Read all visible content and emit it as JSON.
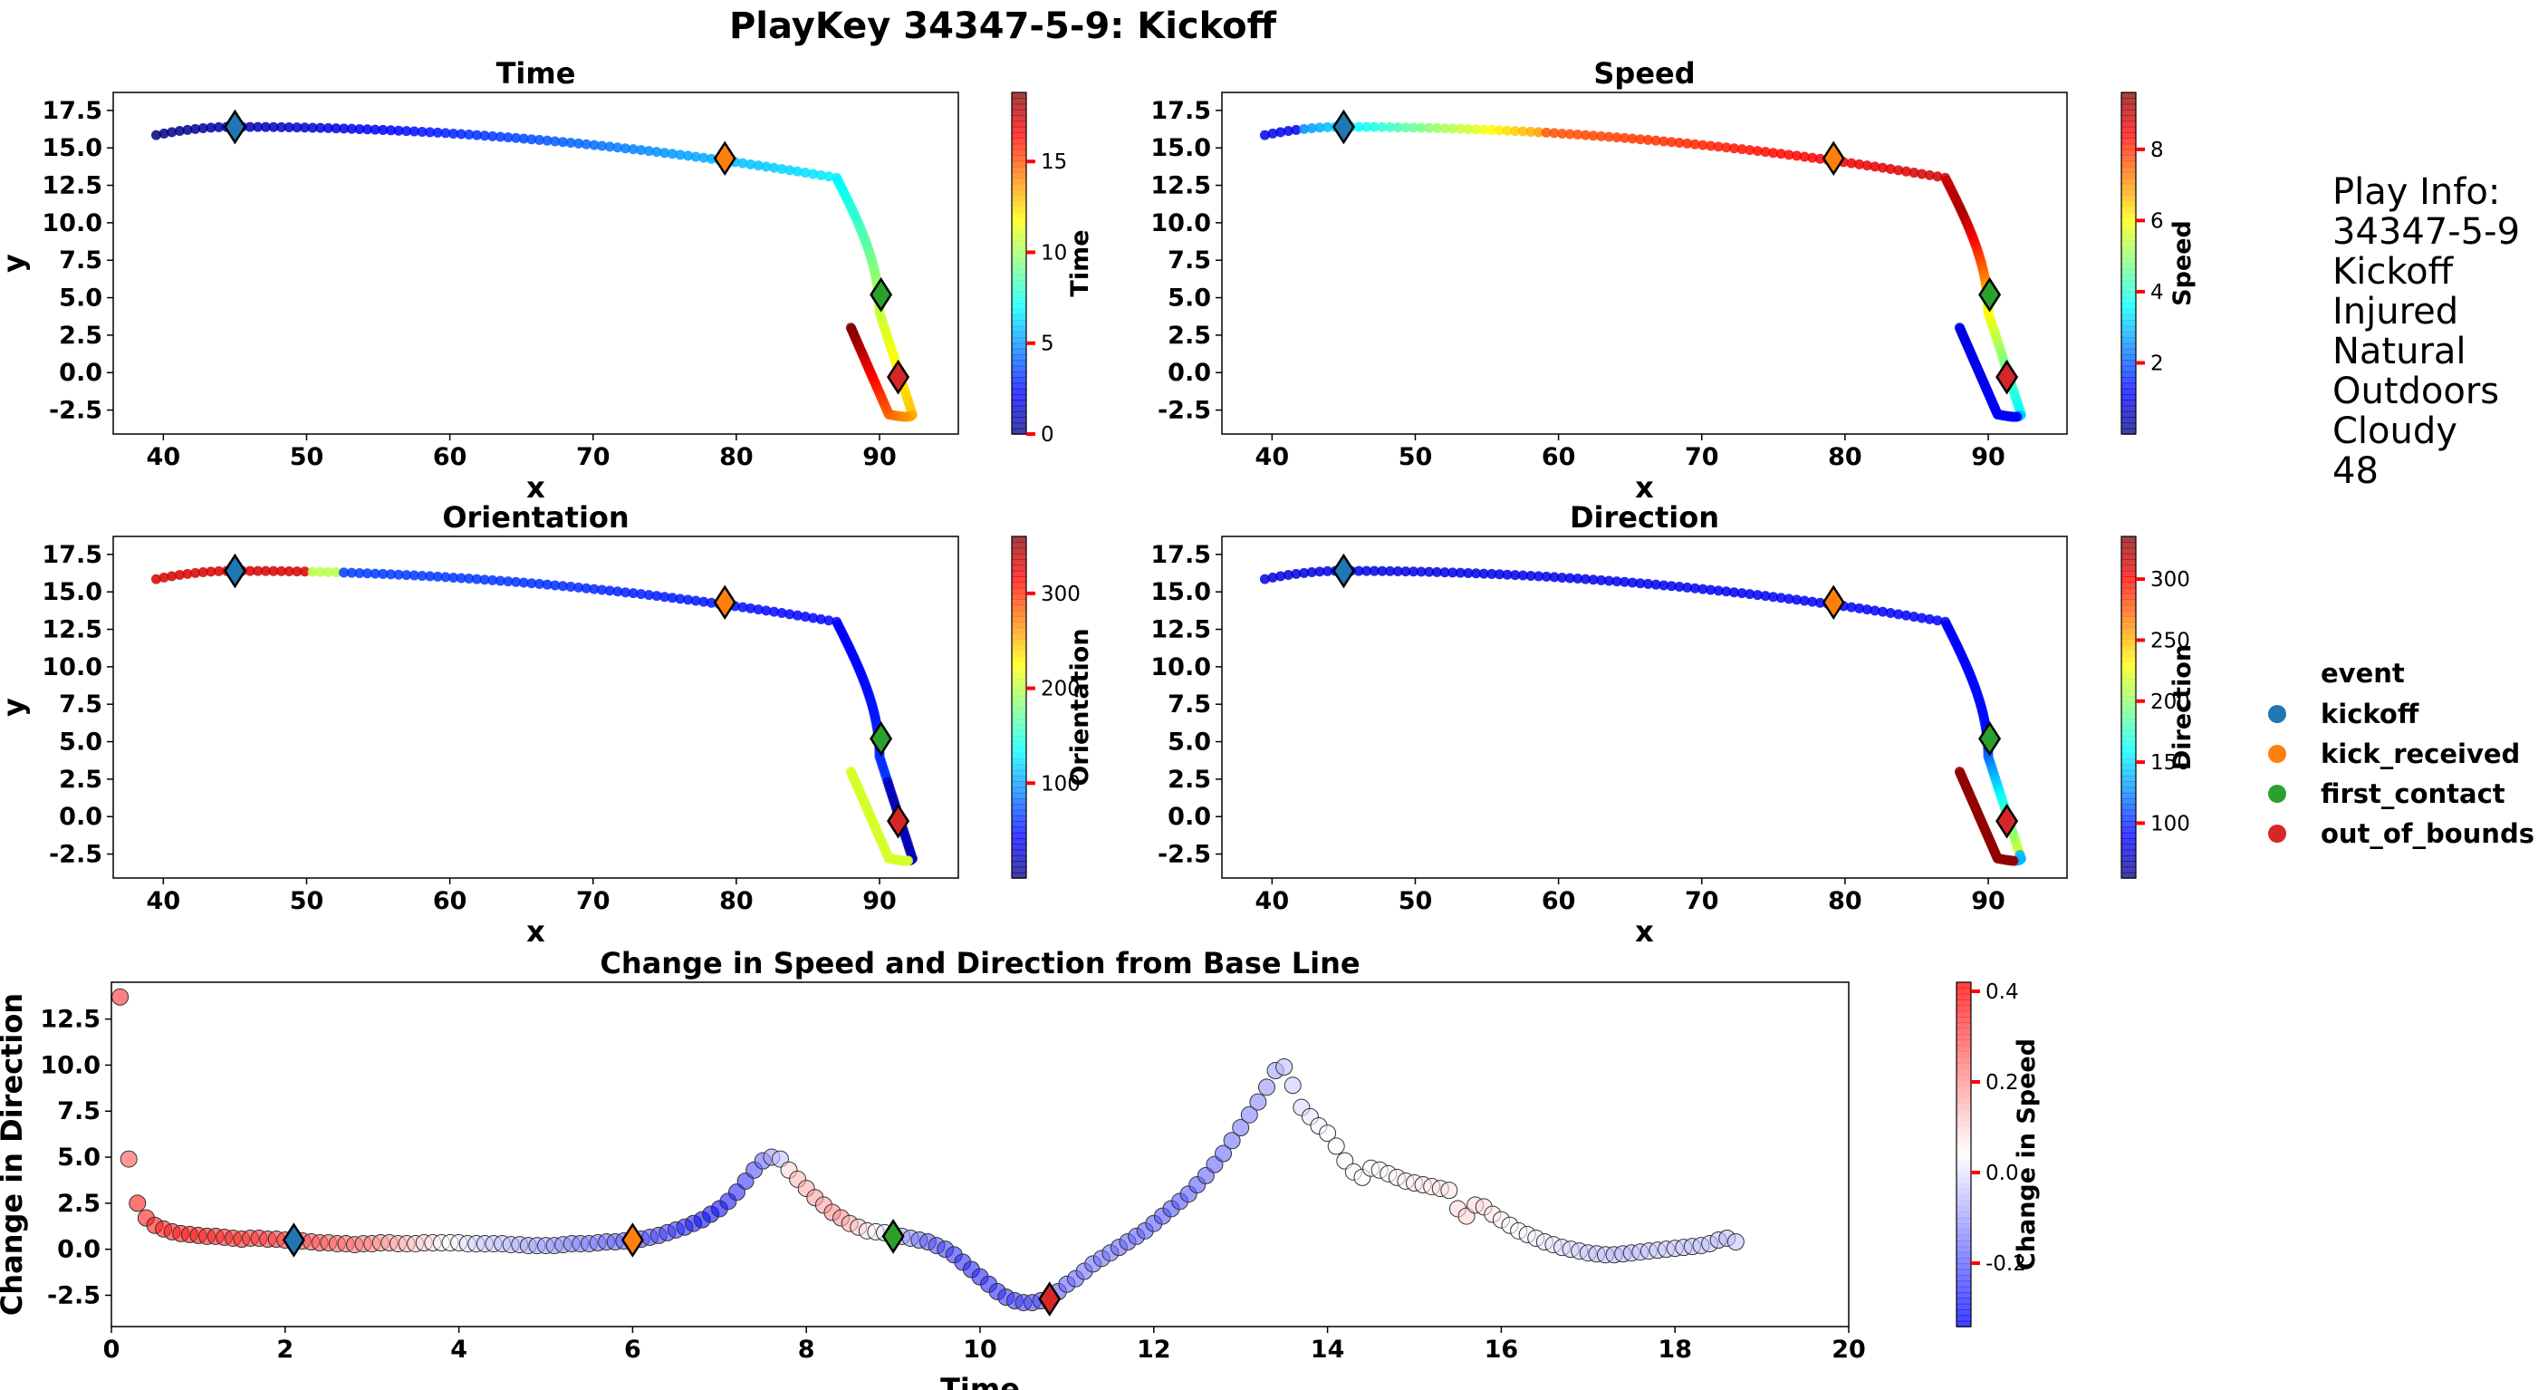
{
  "title": "PlayKey 34347-5-9: Kickoff",
  "info": {
    "heading": "Play Info:",
    "lines": [
      "34347-5-9",
      "Kickoff",
      "Injured",
      "Natural",
      "Outdoors",
      "Cloudy",
      "48"
    ]
  },
  "legend": {
    "title": "event",
    "items": [
      {
        "label": "kickoff",
        "color": "#1f77b4"
      },
      {
        "label": "kick_received",
        "color": "#ff7f0e"
      },
      {
        "label": "first_contact",
        "color": "#2ca02c"
      },
      {
        "label": "out_of_bounds",
        "color": "#d62728"
      }
    ]
  },
  "chart_data": [
    {
      "type": "scatter",
      "title": "Time",
      "xlabel": "x",
      "ylabel": "y",
      "colorbar_label": "Time",
      "colormap": "jet",
      "xlim": [
        36.5,
        95.5
      ],
      "ylim": [
        -4.1,
        18.7
      ],
      "xticks": [
        40,
        50,
        60,
        70,
        80,
        90
      ],
      "yticks": [
        -2.5,
        0.0,
        2.5,
        5.0,
        7.5,
        10.0,
        12.5,
        15.0,
        17.5
      ],
      "clim": [
        0,
        18.8
      ],
      "cticks": [
        0,
        5,
        10,
        15
      ],
      "series_note": "color = time (s), same path in all four panels",
      "markers": [
        {
          "event": "kickoff",
          "x": 45.0,
          "y": 16.4
        },
        {
          "event": "kick_received",
          "x": 79.2,
          "y": 14.3
        },
        {
          "event": "first_contact",
          "x": 90.1,
          "y": 5.2
        },
        {
          "event": "out_of_bounds",
          "x": 91.3,
          "y": -0.3
        }
      ]
    },
    {
      "type": "scatter",
      "title": "Speed",
      "xlabel": "x",
      "ylabel": "",
      "colorbar_label": "Speed",
      "colormap": "jet",
      "xlim": [
        36.5,
        95.5
      ],
      "ylim": [
        -4.1,
        18.7
      ],
      "xticks": [
        40,
        50,
        60,
        70,
        80,
        90
      ],
      "yticks": [
        -2.5,
        0.0,
        2.5,
        5.0,
        7.5,
        10.0,
        12.5,
        15.0,
        17.5
      ],
      "clim": [
        0,
        9.6
      ],
      "cticks": [
        2,
        4,
        6,
        8
      ],
      "markers": [
        {
          "event": "kickoff",
          "x": 45.0,
          "y": 16.4
        },
        {
          "event": "kick_received",
          "x": 79.2,
          "y": 14.3
        },
        {
          "event": "first_contact",
          "x": 90.1,
          "y": 5.2
        },
        {
          "event": "out_of_bounds",
          "x": 91.3,
          "y": -0.3
        }
      ]
    },
    {
      "type": "scatter",
      "title": "Orientation",
      "xlabel": "x",
      "ylabel": "y",
      "colorbar_label": "Orientation",
      "colormap": "jet",
      "xlim": [
        36.5,
        95.5
      ],
      "ylim": [
        -4.1,
        18.7
      ],
      "xticks": [
        40,
        50,
        60,
        70,
        80,
        90
      ],
      "yticks": [
        -2.5,
        0.0,
        2.5,
        5.0,
        7.5,
        10.0,
        12.5,
        15.0,
        17.5
      ],
      "clim": [
        0,
        360
      ],
      "cticks": [
        100,
        200,
        300
      ],
      "markers": [
        {
          "event": "kickoff",
          "x": 45.0,
          "y": 16.4
        },
        {
          "event": "kick_received",
          "x": 79.2,
          "y": 14.3
        },
        {
          "event": "first_contact",
          "x": 90.1,
          "y": 5.2
        },
        {
          "event": "out_of_bounds",
          "x": 91.3,
          "y": -0.3
        }
      ]
    },
    {
      "type": "scatter",
      "title": "Direction",
      "xlabel": "x",
      "ylabel": "",
      "colorbar_label": "Direction",
      "colormap": "jet",
      "xlim": [
        36.5,
        95.5
      ],
      "ylim": [
        -4.1,
        18.7
      ],
      "xticks": [
        40,
        50,
        60,
        70,
        80,
        90
      ],
      "yticks": [
        -2.5,
        0.0,
        2.5,
        5.0,
        7.5,
        10.0,
        12.5,
        15.0,
        17.5
      ],
      "clim": [
        55,
        335
      ],
      "cticks": [
        100,
        150,
        200,
        250,
        300
      ],
      "markers": [
        {
          "event": "kickoff",
          "x": 45.0,
          "y": 16.4
        },
        {
          "event": "kick_received",
          "x": 79.2,
          "y": 14.3
        },
        {
          "event": "first_contact",
          "x": 90.1,
          "y": 5.2
        },
        {
          "event": "out_of_bounds",
          "x": 91.3,
          "y": -0.3
        }
      ]
    },
    {
      "type": "scatter",
      "title": "Change in Speed and Direction from Base Line",
      "xlabel": "Time",
      "ylabel": "Change in Direction",
      "colorbar_label": "Change in Speed",
      "colormap": "bwr",
      "xlim": [
        0,
        20
      ],
      "ylim": [
        -4.2,
        14.5
      ],
      "xticks": [
        0,
        2,
        4,
        6,
        8,
        10,
        12,
        14,
        16,
        18,
        20
      ],
      "yticks": [
        -2.5,
        0.0,
        2.5,
        5.0,
        7.5,
        10.0,
        12.5
      ],
      "clim": [
        -0.34,
        0.42
      ],
      "cticks": [
        -0.2,
        0.0,
        0.2,
        0.4
      ],
      "points": [
        [
          0.1,
          13.7,
          0.35
        ],
        [
          0.2,
          4.9,
          0.3
        ],
        [
          0.3,
          2.5,
          0.38
        ],
        [
          0.4,
          1.7,
          0.38
        ],
        [
          0.5,
          1.3,
          0.38
        ],
        [
          0.6,
          1.1,
          0.38
        ],
        [
          0.7,
          0.95,
          0.38
        ],
        [
          0.8,
          0.85,
          0.38
        ],
        [
          0.9,
          0.8,
          0.38
        ],
        [
          1.0,
          0.75,
          0.38
        ],
        [
          1.1,
          0.7,
          0.37
        ],
        [
          1.2,
          0.7,
          0.37
        ],
        [
          1.3,
          0.65,
          0.36
        ],
        [
          1.4,
          0.6,
          0.36
        ],
        [
          1.5,
          0.55,
          0.35
        ],
        [
          1.6,
          0.6,
          0.34
        ],
        [
          1.7,
          0.6,
          0.34
        ],
        [
          1.8,
          0.55,
          0.33
        ],
        [
          1.9,
          0.55,
          0.33
        ],
        [
          2.0,
          0.5,
          0.32
        ],
        [
          2.1,
          0.5,
          0.31
        ],
        [
          2.2,
          0.45,
          0.3
        ],
        [
          2.3,
          0.4,
          0.3
        ],
        [
          2.4,
          0.35,
          0.29
        ],
        [
          2.5,
          0.35,
          0.28
        ],
        [
          2.6,
          0.3,
          0.27
        ],
        [
          2.7,
          0.3,
          0.26
        ],
        [
          2.8,
          0.25,
          0.25
        ],
        [
          2.9,
          0.3,
          0.24
        ],
        [
          3.0,
          0.3,
          0.22
        ],
        [
          3.1,
          0.35,
          0.2
        ],
        [
          3.2,
          0.35,
          0.18
        ],
        [
          3.3,
          0.3,
          0.16
        ],
        [
          3.4,
          0.3,
          0.14
        ],
        [
          3.5,
          0.3,
          0.12
        ],
        [
          3.6,
          0.35,
          0.1
        ],
        [
          3.7,
          0.35,
          0.08
        ],
        [
          3.8,
          0.35,
          0.06
        ],
        [
          3.9,
          0.35,
          0.04
        ],
        [
          4.0,
          0.35,
          0.02
        ],
        [
          4.1,
          0.3,
          0.0
        ],
        [
          4.2,
          0.3,
          -0.02
        ],
        [
          4.3,
          0.3,
          -0.03
        ],
        [
          4.4,
          0.3,
          -0.04
        ],
        [
          4.5,
          0.3,
          -0.05
        ],
        [
          4.6,
          0.25,
          -0.06
        ],
        [
          4.7,
          0.25,
          -0.07
        ],
        [
          4.8,
          0.2,
          -0.08
        ],
        [
          4.9,
          0.2,
          -0.09
        ],
        [
          5.0,
          0.2,
          -0.1
        ],
        [
          5.1,
          0.2,
          -0.11
        ],
        [
          5.2,
          0.25,
          -0.12
        ],
        [
          5.3,
          0.3,
          -0.13
        ],
        [
          5.4,
          0.3,
          -0.14
        ],
        [
          5.5,
          0.3,
          -0.15
        ],
        [
          5.6,
          0.35,
          -0.16
        ],
        [
          5.7,
          0.4,
          -0.17
        ],
        [
          5.8,
          0.4,
          -0.18
        ],
        [
          5.9,
          0.45,
          -0.19
        ],
        [
          6.0,
          0.5,
          -0.2
        ],
        [
          6.1,
          0.55,
          -0.21
        ],
        [
          6.2,
          0.65,
          -0.22
        ],
        [
          6.3,
          0.75,
          -0.23
        ],
        [
          6.4,
          0.9,
          -0.24
        ],
        [
          6.5,
          1.05,
          -0.26
        ],
        [
          6.6,
          1.2,
          -0.28
        ],
        [
          6.7,
          1.4,
          -0.3
        ],
        [
          6.8,
          1.6,
          -0.32
        ],
        [
          6.9,
          1.9,
          -0.32
        ],
        [
          7.0,
          2.2,
          -0.32
        ],
        [
          7.1,
          2.6,
          -0.3
        ],
        [
          7.2,
          3.1,
          -0.28
        ],
        [
          7.3,
          3.7,
          -0.26
        ],
        [
          7.4,
          4.3,
          -0.22
        ],
        [
          7.5,
          4.8,
          -0.18
        ],
        [
          7.6,
          5.0,
          -0.1
        ],
        [
          7.7,
          4.9,
          -0.05
        ],
        [
          7.8,
          4.3,
          0.1
        ],
        [
          7.9,
          3.8,
          0.14
        ],
        [
          8.0,
          3.3,
          0.16
        ],
        [
          8.1,
          2.8,
          0.18
        ],
        [
          8.2,
          2.4,
          0.18
        ],
        [
          8.3,
          2.0,
          0.2
        ],
        [
          8.4,
          1.7,
          0.2
        ],
        [
          8.5,
          1.4,
          0.16
        ],
        [
          8.6,
          1.2,
          0.12
        ],
        [
          8.7,
          1.0,
          0.08
        ],
        [
          8.8,
          0.95,
          0.04
        ],
        [
          8.9,
          0.9,
          0.0
        ],
        [
          9.0,
          0.8,
          -0.03
        ],
        [
          9.1,
          0.7,
          -0.08
        ],
        [
          9.2,
          0.6,
          -0.12
        ],
        [
          9.3,
          0.5,
          -0.16
        ],
        [
          9.4,
          0.4,
          -0.2
        ],
        [
          9.5,
          0.2,
          -0.22
        ],
        [
          9.6,
          0.0,
          -0.24
        ],
        [
          9.7,
          -0.3,
          -0.26
        ],
        [
          9.8,
          -0.7,
          -0.27
        ],
        [
          9.9,
          -1.1,
          -0.28
        ],
        [
          10.0,
          -1.5,
          -0.28
        ],
        [
          10.1,
          -1.9,
          -0.28
        ],
        [
          10.2,
          -2.3,
          -0.27
        ],
        [
          10.3,
          -2.6,
          -0.26
        ],
        [
          10.4,
          -2.8,
          -0.25
        ],
        [
          10.5,
          -2.9,
          -0.24
        ],
        [
          10.6,
          -2.9,
          -0.23
        ],
        [
          10.7,
          -2.8,
          -0.22
        ],
        [
          10.8,
          -2.6,
          -0.21
        ],
        [
          10.9,
          -2.3,
          -0.2
        ],
        [
          11.0,
          -1.9,
          -0.19
        ],
        [
          11.1,
          -1.6,
          -0.18
        ],
        [
          11.2,
          -1.2,
          -0.17
        ],
        [
          11.3,
          -0.8,
          -0.17
        ],
        [
          11.4,
          -0.5,
          -0.17
        ],
        [
          11.5,
          -0.2,
          -0.17
        ],
        [
          11.6,
          0.1,
          -0.18
        ],
        [
          11.7,
          0.4,
          -0.18
        ],
        [
          11.8,
          0.7,
          -0.19
        ],
        [
          11.9,
          1.0,
          -0.2
        ],
        [
          12.0,
          1.4,
          -0.2
        ],
        [
          12.1,
          1.8,
          -0.21
        ],
        [
          12.2,
          2.2,
          -0.21
        ],
        [
          12.3,
          2.6,
          -0.21
        ],
        [
          12.4,
          3.0,
          -0.2
        ],
        [
          12.5,
          3.5,
          -0.2
        ],
        [
          12.6,
          4.0,
          -0.19
        ],
        [
          12.7,
          4.6,
          -0.19
        ],
        [
          12.8,
          5.2,
          -0.18
        ],
        [
          12.9,
          5.9,
          -0.17
        ],
        [
          13.0,
          6.6,
          -0.16
        ],
        [
          13.1,
          7.3,
          -0.15
        ],
        [
          13.2,
          8.0,
          -0.14
        ],
        [
          13.3,
          8.8,
          -0.12
        ],
        [
          13.4,
          9.7,
          -0.1
        ],
        [
          13.5,
          9.9,
          -0.06
        ],
        [
          13.6,
          8.9,
          -0.04
        ],
        [
          13.7,
          7.7,
          -0.02
        ],
        [
          13.8,
          7.2,
          0.0
        ],
        [
          13.9,
          6.7,
          0.02
        ],
        [
          14.0,
          6.3,
          0.04
        ],
        [
          14.1,
          5.6,
          0.04
        ],
        [
          14.2,
          4.8,
          0.05
        ],
        [
          14.3,
          4.2,
          0.05
        ],
        [
          14.4,
          3.9,
          0.04
        ],
        [
          14.5,
          4.4,
          0.04
        ],
        [
          14.6,
          4.3,
          0.04
        ],
        [
          14.7,
          4.1,
          0.05
        ],
        [
          14.8,
          3.9,
          0.05
        ],
        [
          14.9,
          3.7,
          0.06
        ],
        [
          15.0,
          3.6,
          0.06
        ],
        [
          15.1,
          3.5,
          0.07
        ],
        [
          15.2,
          3.4,
          0.07
        ],
        [
          15.3,
          3.3,
          0.08
        ],
        [
          15.4,
          3.2,
          0.08
        ],
        [
          15.5,
          2.2,
          0.1
        ],
        [
          15.6,
          1.8,
          0.1
        ],
        [
          15.7,
          2.4,
          0.1
        ],
        [
          15.8,
          2.3,
          0.09
        ],
        [
          15.9,
          1.9,
          0.08
        ],
        [
          16.0,
          1.6,
          0.06
        ],
        [
          16.1,
          1.3,
          0.05
        ],
        [
          16.2,
          1.0,
          0.04
        ],
        [
          16.3,
          0.8,
          0.03
        ],
        [
          16.4,
          0.6,
          0.02
        ],
        [
          16.5,
          0.4,
          0.01
        ],
        [
          16.6,
          0.25,
          0.0
        ],
        [
          16.7,
          0.1,
          -0.01
        ],
        [
          16.8,
          0.0,
          -0.02
        ],
        [
          16.9,
          -0.1,
          -0.03
        ],
        [
          17.0,
          -0.2,
          -0.04
        ],
        [
          17.1,
          -0.25,
          -0.05
        ],
        [
          17.2,
          -0.3,
          -0.05
        ],
        [
          17.3,
          -0.3,
          -0.06
        ],
        [
          17.4,
          -0.25,
          -0.06
        ],
        [
          17.5,
          -0.2,
          -0.06
        ],
        [
          17.6,
          -0.15,
          -0.05
        ],
        [
          17.7,
          -0.1,
          -0.05
        ],
        [
          17.8,
          -0.05,
          -0.04
        ],
        [
          17.9,
          0.0,
          -0.04
        ],
        [
          18.0,
          0.05,
          -0.04
        ],
        [
          18.1,
          0.1,
          -0.04
        ],
        [
          18.2,
          0.15,
          -0.05
        ],
        [
          18.3,
          0.2,
          -0.05
        ],
        [
          18.4,
          0.3,
          -0.05
        ],
        [
          18.5,
          0.5,
          -0.06
        ],
        [
          18.6,
          0.6,
          -0.06
        ],
        [
          18.7,
          0.4,
          -0.05
        ]
      ],
      "markers": [
        {
          "event": "kickoff",
          "x": 2.1,
          "y": 0.5
        },
        {
          "event": "kick_received",
          "x": 6.0,
          "y": 0.5
        },
        {
          "event": "first_contact",
          "x": 9.0,
          "y": 0.7
        },
        {
          "event": "out_of_bounds",
          "x": 10.8,
          "y": -2.7
        }
      ]
    }
  ]
}
